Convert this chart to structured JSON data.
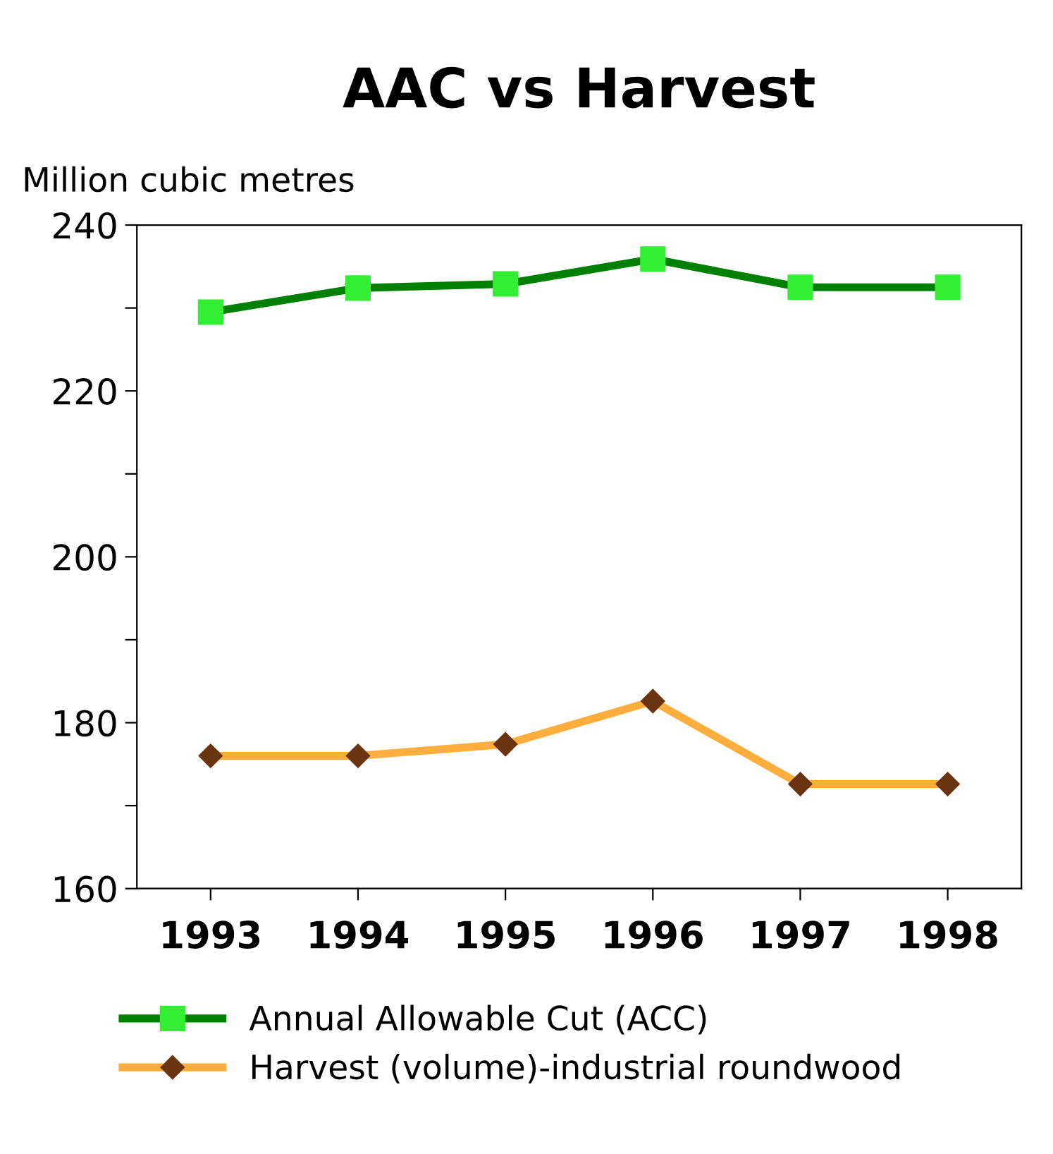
{
  "chart_data": {
    "type": "line",
    "title": "AAC vs Harvest",
    "ylabel": "Million cubic metres",
    "categories": [
      "1993",
      "1994",
      "1995",
      "1996",
      "1997",
      "1998"
    ],
    "series": [
      {
        "name": "Annual Allowable Cut (ACC)",
        "color": "#008000",
        "marker": "square",
        "colors": [
          "#33ee33",
          "#33ee33",
          "#33ee33",
          "#33ee33",
          "#33ee33",
          "#33ee33"
        ],
        "values": [
          229.5,
          232.4,
          232.9,
          235.9,
          232.5,
          232.5
        ]
      },
      {
        "name": "Harvest (volume)-industrial roundwood",
        "color": "#ffae3d",
        "marker": "diamond",
        "colors": [
          "#6b3410",
          "#6b3410",
          "#6b3410",
          "#6b3410",
          "#6b3410",
          "#6b3410"
        ],
        "values": [
          176.0,
          176.0,
          177.4,
          182.6,
          172.6,
          172.6
        ]
      }
    ],
    "ylim": [
      160,
      240
    ],
    "yticks": [
      160,
      {
        "value": 170,
        "label": null
      },
      180,
      {
        "value": 190,
        "label": null
      },
      200,
      {
        "value": 210,
        "label": null
      },
      220,
      {
        "value": 230,
        "label": null
      },
      240
    ],
    "grid": false,
    "legend": "bottom",
    "line_style": "solid"
  }
}
